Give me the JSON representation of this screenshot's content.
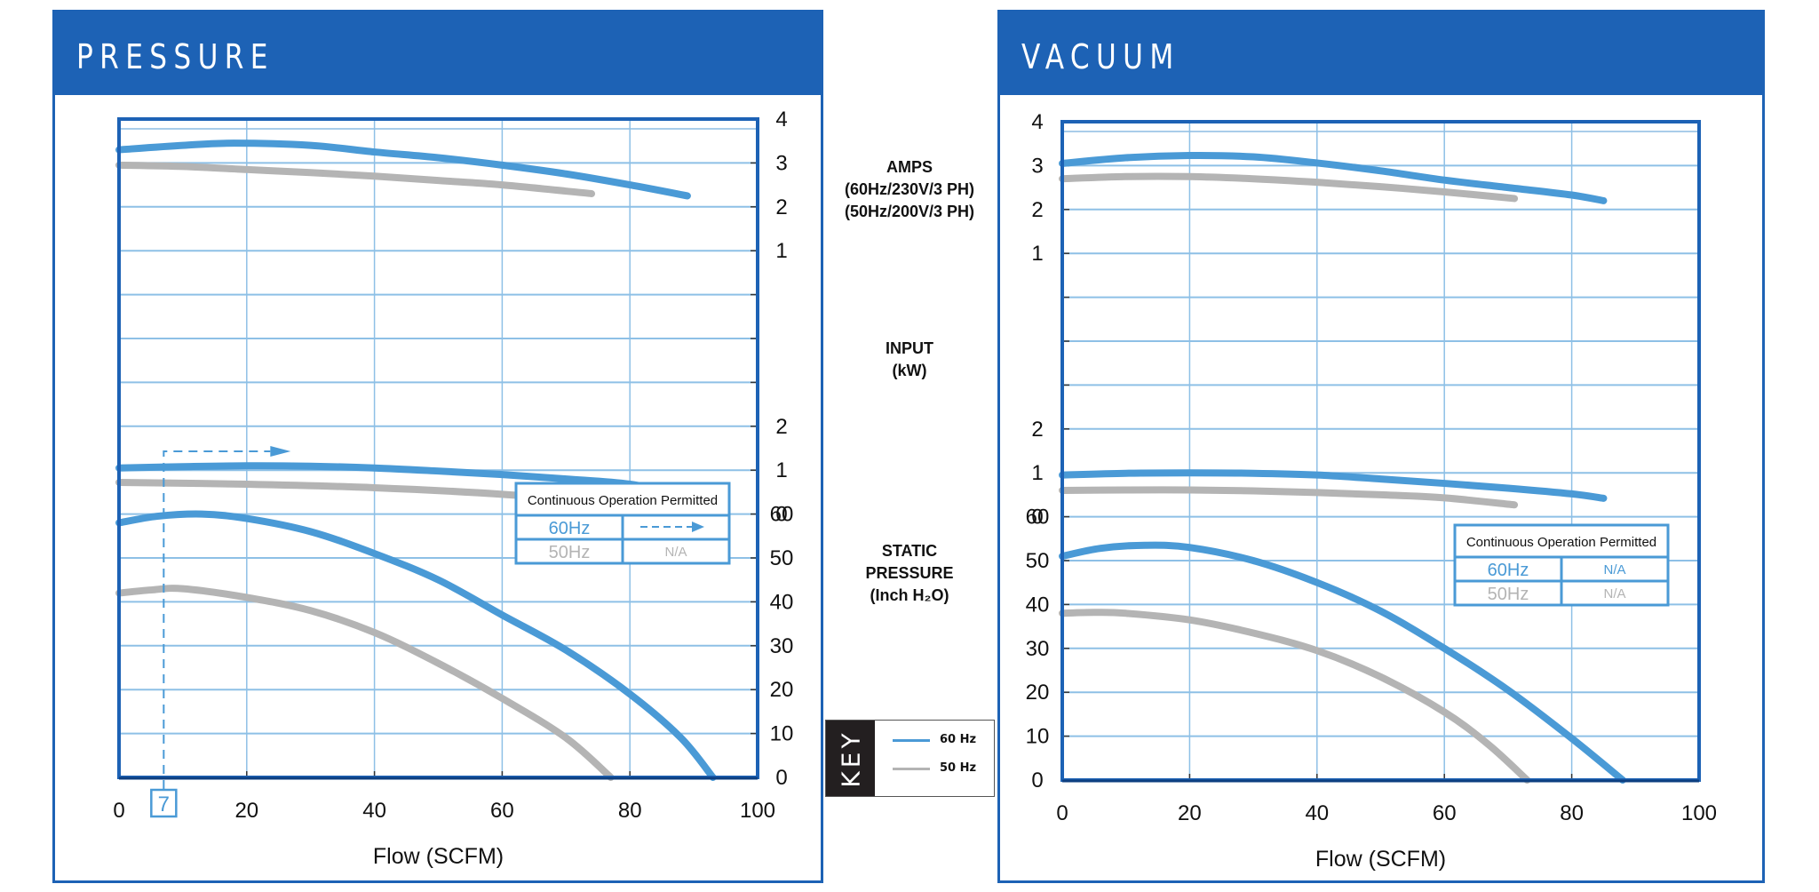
{
  "pressure_panel": {
    "title": "PRESSURE"
  },
  "vacuum_panel": {
    "title": "VACUUM"
  },
  "center_labels": {
    "amps": [
      "AMPS",
      "(60Hz/230V/3 PH)",
      "(50Hz/200V/3 PH)"
    ],
    "input": [
      "INPUT",
      "(kW)"
    ],
    "static": [
      "STATIC",
      "PRESSURE",
      "(Inch H₂O)"
    ]
  },
  "key": {
    "title": "KEY",
    "items": [
      {
        "label": "60 Hz",
        "color": "#4a9ad6"
      },
      {
        "label": "50 Hz",
        "color": "#b4b4b4"
      }
    ]
  },
  "colors": {
    "brand_blue": "#1d62b5",
    "grid": "#8ec0e6",
    "hz60": "#4a9ad6",
    "hz50": "#b4b4b4",
    "plot_border": "#1d62b5"
  },
  "chart_data": [
    {
      "type": "line",
      "title": "PRESSURE",
      "xlabel": "Flow (SCFM)",
      "x_ticks": [
        0,
        20,
        40,
        60,
        80,
        100
      ],
      "xlim": [
        0,
        100
      ],
      "grid": true,
      "marker": {
        "x": 7,
        "label": "7"
      },
      "continuous_operation": {
        "header": "Continuous  Operation Permitted",
        "rows": [
          {
            "label": "60Hz",
            "value": "arrow-right",
            "color": "#4a9ad6"
          },
          {
            "label": "50Hz",
            "value": "N/A",
            "color": "#b4b4b4"
          }
        ]
      },
      "sections": [
        {
          "name": "AMPS",
          "ylabel": "AMPS (60Hz/230V/3 PH) (50Hz/200V/3 PH)",
          "y_ticks": [
            1,
            2,
            3,
            4
          ],
          "series": [
            {
              "name": "60 Hz",
              "x": [
                0,
                10,
                18,
                30,
                40,
                50,
                60,
                70,
                80,
                89
              ],
              "y": [
                3.3,
                3.4,
                3.45,
                3.4,
                3.25,
                3.12,
                2.95,
                2.75,
                2.5,
                2.25
              ]
            },
            {
              "name": "50 Hz",
              "x": [
                0,
                10,
                20,
                30,
                40,
                50,
                60,
                74
              ],
              "y": [
                2.95,
                2.92,
                2.85,
                2.78,
                2.7,
                2.6,
                2.5,
                2.3
              ]
            }
          ]
        },
        {
          "name": "INPUT (kW)",
          "ylabel": "INPUT (kW)",
          "y_ticks": [
            0,
            1,
            2
          ],
          "series": [
            {
              "name": "60 Hz",
              "x": [
                0,
                10,
                20,
                30,
                40,
                50,
                60,
                70,
                80,
                89
              ],
              "y": [
                1.05,
                1.08,
                1.1,
                1.09,
                1.05,
                0.98,
                0.9,
                0.8,
                0.68,
                0.42
              ]
            },
            {
              "name": "50 Hz",
              "x": [
                0,
                20,
                40,
                60,
                74
              ],
              "y": [
                0.72,
                0.68,
                0.6,
                0.45,
                0.27
              ]
            }
          ]
        },
        {
          "name": "STATIC PRESSURE",
          "ylabel": "STATIC PRESSURE (Inch H2O)",
          "y_ticks": [
            0,
            10,
            20,
            30,
            40,
            50,
            60
          ],
          "series": [
            {
              "name": "60 Hz",
              "x": [
                0,
                6,
                13,
                20,
                30,
                40,
                50,
                60,
                70,
                80,
                88,
                93
              ],
              "y": [
                58,
                59.5,
                60,
                59,
                56,
                51,
                45,
                37,
                29,
                19,
                9,
                0
              ]
            },
            {
              "name": "50 Hz",
              "x": [
                0,
                5,
                10,
                20,
                30,
                40,
                50,
                60,
                70,
                77
              ],
              "y": [
                42,
                42.7,
                43,
                41,
                38,
                33,
                26,
                18,
                9,
                0
              ]
            }
          ]
        }
      ]
    },
    {
      "type": "line",
      "title": "VACUUM",
      "xlabel": "Flow (SCFM)",
      "x_ticks": [
        0,
        20,
        40,
        60,
        80,
        100
      ],
      "xlim": [
        0,
        100
      ],
      "grid": true,
      "continuous_operation": {
        "header": "Continuous  Operation Permitted",
        "rows": [
          {
            "label": "60Hz",
            "value": "N/A",
            "color": "#4a9ad6"
          },
          {
            "label": "50Hz",
            "value": "N/A",
            "color": "#b4b4b4"
          }
        ]
      },
      "sections": [
        {
          "name": "AMPS",
          "y_ticks": [
            1,
            2,
            3,
            4
          ],
          "series": [
            {
              "name": "60 Hz",
              "x": [
                0,
                10,
                20,
                30,
                40,
                50,
                60,
                70,
                80,
                85
              ],
              "y": [
                3.05,
                3.18,
                3.23,
                3.2,
                3.06,
                2.88,
                2.67,
                2.5,
                2.33,
                2.2
              ]
            },
            {
              "name": "50 Hz",
              "x": [
                0,
                10,
                20,
                30,
                40,
                50,
                60,
                71
              ],
              "y": [
                2.7,
                2.75,
                2.75,
                2.7,
                2.62,
                2.52,
                2.4,
                2.25
              ]
            }
          ]
        },
        {
          "name": "INPUT (kW)",
          "y_ticks": [
            0,
            1,
            2
          ],
          "series": [
            {
              "name": "60 Hz",
              "x": [
                0,
                10,
                20,
                30,
                40,
                50,
                60,
                70,
                80,
                85
              ],
              "y": [
                0.95,
                0.99,
                1.0,
                0.99,
                0.95,
                0.86,
                0.76,
                0.65,
                0.52,
                0.42
              ]
            },
            {
              "name": "50 Hz",
              "x": [
                0,
                10,
                20,
                30,
                40,
                50,
                60,
                71
              ],
              "y": [
                0.6,
                0.61,
                0.61,
                0.59,
                0.55,
                0.5,
                0.43,
                0.27
              ]
            }
          ]
        },
        {
          "name": "STATIC PRESSURE",
          "y_ticks": [
            0,
            10,
            20,
            30,
            40,
            50,
            60
          ],
          "series": [
            {
              "name": "60 Hz",
              "x": [
                0,
                6,
                13,
                20,
                30,
                40,
                50,
                60,
                70,
                80,
                88
              ],
              "y": [
                51,
                52.8,
                53.5,
                53,
                50,
                45,
                38.5,
                30,
                20.5,
                9.5,
                0
              ]
            },
            {
              "name": "50 Hz",
              "x": [
                0,
                5,
                10,
                20,
                30,
                40,
                50,
                60,
                67,
                73
              ],
              "y": [
                38,
                38.2,
                38,
                36.5,
                33.5,
                29.5,
                23.5,
                15.5,
                8,
                0
              ]
            }
          ]
        }
      ]
    }
  ]
}
